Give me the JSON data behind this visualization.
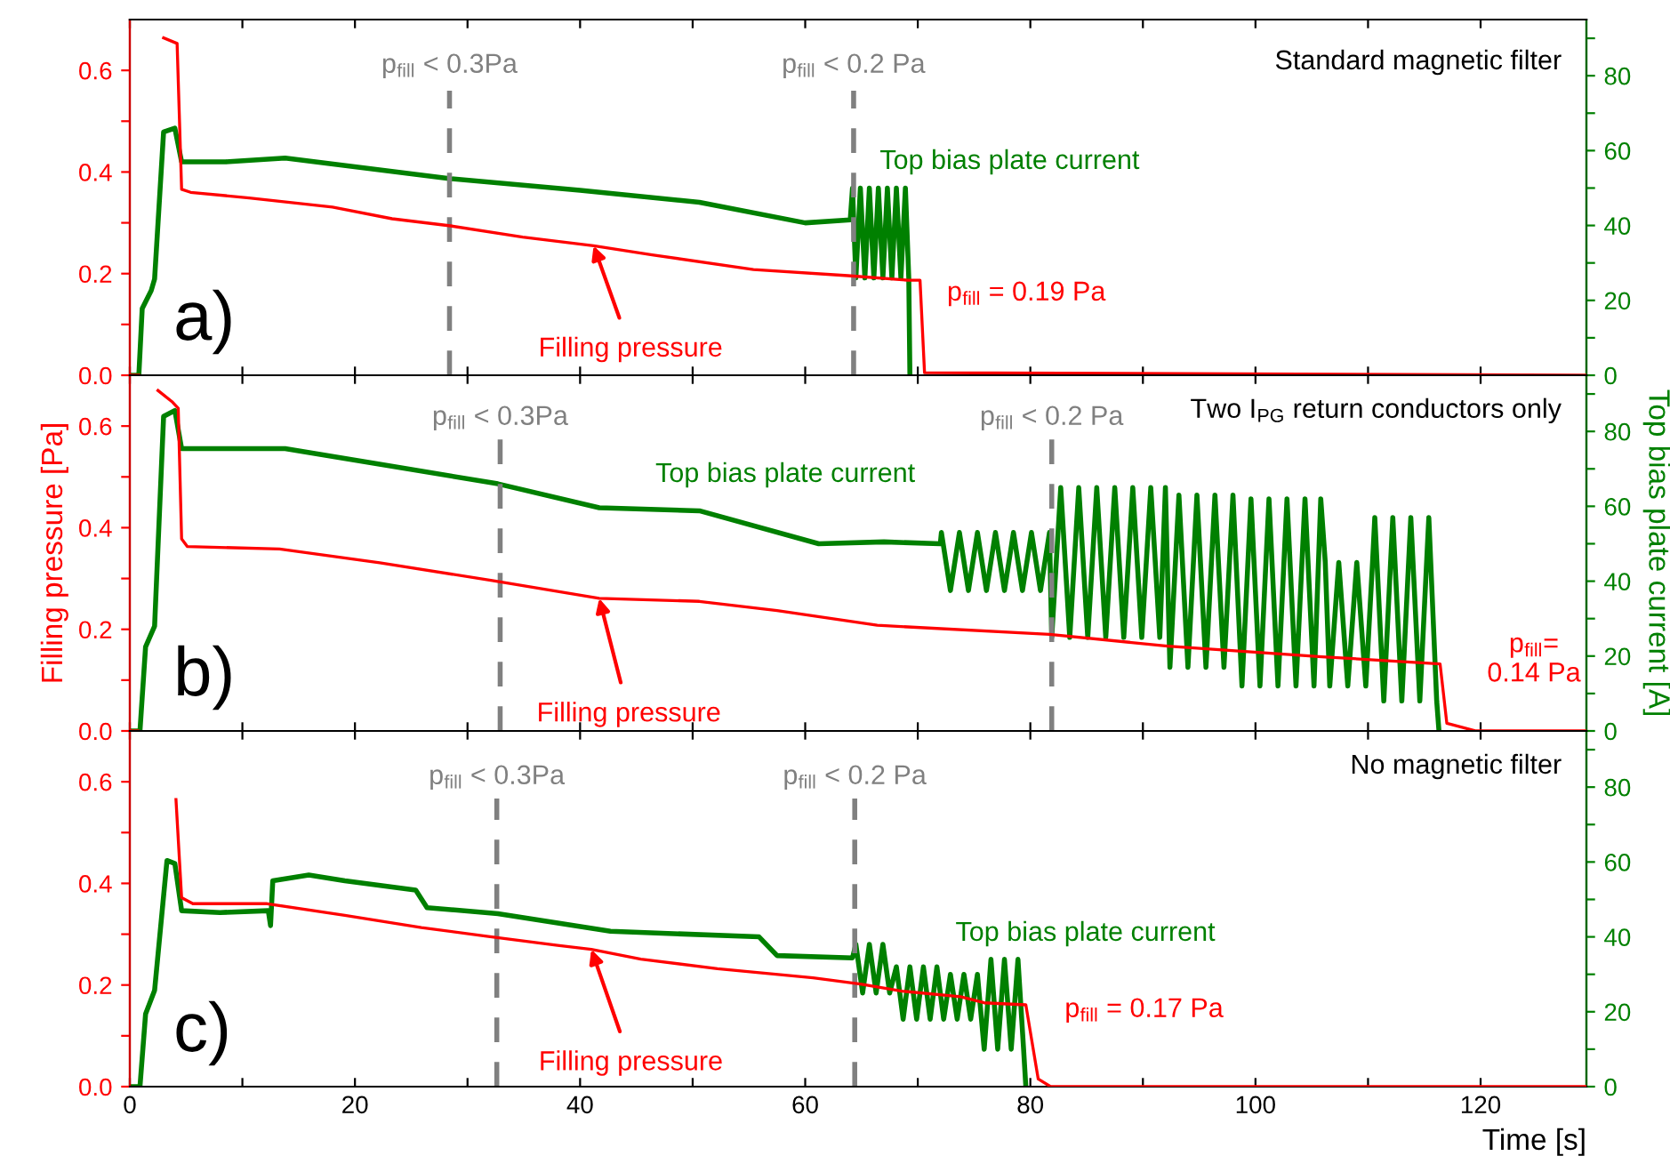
{
  "chart_data": [
    {
      "type": "line",
      "tick_labels": "y",
      "xlim": [
        0,
        129.4
      ],
      "xticks": [
        0,
        {
          "value": 10,
          "label": null
        },
        20,
        {
          "value": 30,
          "label": null
        },
        40,
        {
          "value": 50,
          "label": null
        },
        60,
        {
          "value": 70,
          "label": null
        },
        80,
        {
          "value": 90,
          "label": null
        },
        100,
        {
          "value": 110,
          "label": null
        },
        120
      ],
      "ylim": [
        0,
        0.7
      ],
      "yticks": [
        {
          "value": 0,
          "label": "0.0"
        },
        {
          "value": 0.1,
          "label": null
        },
        {
          "value": 0.2,
          "label": "0.2"
        },
        {
          "value": 0.3,
          "label": null
        },
        {
          "value": 0.4,
          "label": "0.4"
        },
        {
          "value": 0.5,
          "label": null
        },
        {
          "value": 0.6,
          "label": "0.6"
        }
      ],
      "y2lim": [
        0,
        95
      ],
      "y2ticks": [
        0,
        {
          "value": 10,
          "label": null
        },
        20,
        {
          "value": 30,
          "label": null
        },
        40,
        {
          "value": 50,
          "label": null
        },
        60,
        {
          "value": 70,
          "label": null
        },
        80,
        {
          "value": 90,
          "label": null
        }
      ],
      "series": [
        {
          "name": "Filling pressure",
          "color": "#ff0000",
          "x": [
            0,
            0.8,
            1.0,
            2.2,
            3.0,
            4.2,
            4.6,
            5.4,
            10.6,
            18,
            23.3,
            28.5,
            34.9,
            41.2,
            46.4,
            55.4,
            63.8,
            69.1,
            70.2,
            70.6,
            129.4
          ],
          "values": [
            0,
            0,
            null,
            null,
            0.664,
            0.653,
            0.366,
            0.36,
            0.349,
            0.331,
            0.308,
            0.294,
            0.272,
            0.255,
            0.237,
            0.208,
            0.196,
            0.187,
            0.187,
            0.005,
            0
          ]
        },
        {
          "name": "Top bias plate current",
          "color": "#008000",
          "axis": "y2",
          "x": [
            0,
            0.8,
            1.1,
            1.9,
            2.2,
            3.0,
            4.0,
            4.6,
            8.5,
            13.8,
            28.5,
            40,
            50.6,
            60,
            64,
            64.2,
            64.5,
            64.9,
            65.3,
            65.7,
            66.1,
            66.5,
            66.9,
            67.3,
            67.7,
            68.1,
            68.5,
            68.9,
            69.2,
            69.3
          ],
          "values": [
            0,
            0,
            17.8,
            22.6,
            25.7,
            65,
            66,
            57,
            57,
            58,
            52.5,
            49.4,
            46.2,
            40.7,
            41.5,
            50,
            26,
            50,
            26,
            50,
            26,
            50,
            26,
            50,
            26,
            50,
            26,
            50,
            26,
            0
          ]
        }
      ],
      "ref_lines": [
        {
          "axis": "x",
          "value": 28.4,
          "label": "p$_{fill}$ < 0.3Pa",
          "color": "#808080",
          "line_style": "dashed"
        },
        {
          "axis": "x",
          "value": 64.3,
          "label": "p$_{fill}$ < 0.2 Pa",
          "color": "#808080",
          "line_style": "dashed"
        }
      ],
      "annotations": [
        "a)",
        "Standard magnetic filter",
        {
          "text": "p$_{fill}$ = 0.19 Pa",
          "x": 70.4,
          "y": 0.19
        }
      ]
    },
    {
      "type": "line",
      "tick_labels": "y",
      "ylabel": "Filling pressure [Pa]",
      "y2label": "Top bias plate current [A]",
      "xlim": [
        0,
        129.4
      ],
      "xticks": [
        0,
        {
          "value": 10,
          "label": null
        },
        20,
        {
          "value": 30,
          "label": null
        },
        40,
        {
          "value": 50,
          "label": null
        },
        60,
        {
          "value": 70,
          "label": null
        },
        80,
        {
          "value": 90,
          "label": null
        },
        100,
        {
          "value": 110,
          "label": null
        },
        120
      ],
      "ylim": [
        0,
        0.7
      ],
      "yticks": [
        {
          "value": 0,
          "label": "0.0"
        },
        {
          "value": 0.1,
          "label": null
        },
        {
          "value": 0.2,
          "label": "0.2"
        },
        {
          "value": 0.3,
          "label": null
        },
        {
          "value": 0.4,
          "label": "0.4"
        },
        {
          "value": 0.5,
          "label": null
        },
        {
          "value": 0.6,
          "label": "0.6"
        }
      ],
      "y2lim": [
        0,
        95
      ],
      "y2ticks": [
        0,
        {
          "value": 10,
          "label": null
        },
        20,
        {
          "value": 30,
          "label": null
        },
        40,
        {
          "value": 50,
          "label": null
        },
        60,
        {
          "value": 70,
          "label": null
        },
        80,
        {
          "value": 90,
          "label": null
        }
      ],
      "series": [
        {
          "name": "Filling pressure",
          "color": "#ff0000",
          "x": [
            0,
            0.7,
            0.9,
            1.5,
            2.5,
            3.8,
            4.3,
            4.6,
            5.1,
            13.3,
            22.2,
            32.2,
            41.7,
            50.6,
            57.5,
            66.4,
            81.7,
            92.2,
            105.9,
            116.4,
            117,
            119.6,
            129.4
          ],
          "values": [
            0,
            0,
            null,
            null,
            0.67,
            0.647,
            0.635,
            0.378,
            0.363,
            0.358,
            0.331,
            0.296,
            0.261,
            0.255,
            0.237,
            0.208,
            0.19,
            0.167,
            0.146,
            0.132,
            0.015,
            0,
            0
          ]
        },
        {
          "name": "Top bias plate current",
          "color": "#008000",
          "axis": "y2",
          "x": [
            0,
            0.9,
            1.4,
            2.2,
            3.0,
            4.0,
            4.6,
            13.8,
            21.7,
            32.7,
            41.7,
            50.6,
            61.2,
            67,
            72,
            72.1,
            72.9,
            73.7,
            74.5,
            75.3,
            76.1,
            76.9,
            77.7,
            78.5,
            79.3,
            80.1,
            80.9,
            81.7,
            81.9,
            82.7,
            83.5,
            84.3,
            85.1,
            85.9,
            86.7,
            87.5,
            88.3,
            89.1,
            89.9,
            90.7,
            91.5,
            92.0,
            92.4,
            93.2,
            94.0,
            94.8,
            95.6,
            96.4,
            97.2,
            98.0,
            98.8,
            99.6,
            100.4,
            101.2,
            102.0,
            102.8,
            103.6,
            104.4,
            105.2,
            105.8,
            106.2,
            106.6,
            107.4,
            108.2,
            109.0,
            109.8,
            110.4,
            110.6,
            111.4,
            112.2,
            113.0,
            113.8,
            114.6,
            115.4,
            116.1,
            116.3
          ],
          "values": [
            0,
            0,
            22.5,
            28,
            84,
            85.6,
            75.4,
            75.4,
            71.5,
            66,
            59.6,
            58.8,
            50,
            50.5,
            50,
            53,
            37.5,
            53,
            37.5,
            53,
            37.5,
            53,
            37.5,
            53,
            37.5,
            53,
            37.5,
            53,
            25,
            65,
            25,
            65,
            25,
            65,
            25,
            65,
            25,
            65,
            25,
            65,
            25,
            65,
            17,
            63,
            17,
            63,
            17,
            63,
            17,
            63,
            12,
            62,
            12,
            62,
            12,
            62,
            12,
            62,
            12,
            62,
            45,
            12,
            45,
            12,
            45,
            12,
            45,
            57,
            8,
            57,
            8,
            57,
            8,
            57,
            8,
            0
          ]
        }
      ],
      "ref_lines": [
        {
          "axis": "x",
          "value": 32.9,
          "label": "p$_{fill}$ < 0.3Pa",
          "color": "#808080",
          "line_style": "dashed"
        },
        {
          "axis": "x",
          "value": 81.9,
          "label": "p$_{fill}$ < 0.2 Pa",
          "color": "#808080",
          "line_style": "dashed"
        }
      ],
      "annotations": [
        "b)",
        "Two I$_{PG}$ return conductors only",
        {
          "text": "p$_{fill}$=\n0.14 Pa",
          "x": 116.4,
          "y": 0.14
        }
      ]
    },
    {
      "type": "line",
      "xlabel": "Time [s]",
      "xlim": [
        0,
        129.4
      ],
      "xticks": [
        0,
        {
          "value": 10,
          "label": null
        },
        20,
        {
          "value": 30,
          "label": null
        },
        40,
        {
          "value": 50,
          "label": null
        },
        60,
        {
          "value": 70,
          "label": null
        },
        80,
        {
          "value": 90,
          "label": null
        },
        100,
        {
          "value": 110,
          "label": null
        },
        120
      ],
      "ylim": [
        0,
        0.7
      ],
      "yticks": [
        {
          "value": 0,
          "label": "0.0"
        },
        {
          "value": 0.1,
          "label": null
        },
        {
          "value": 0.2,
          "label": "0.2"
        },
        {
          "value": 0.3,
          "label": null
        },
        {
          "value": 0.4,
          "label": "0.4"
        },
        {
          "value": 0.5,
          "label": null
        },
        {
          "value": 0.6,
          "label": "0.6"
        }
      ],
      "y2lim": [
        0,
        95
      ],
      "y2ticks": [
        0,
        {
          "value": 10,
          "label": null
        },
        20,
        {
          "value": 30,
          "label": null
        },
        40,
        {
          "value": 50,
          "label": null
        },
        60,
        {
          "value": 70,
          "label": null
        },
        80,
        {
          "value": 90,
          "label": null
        }
      ],
      "series": [
        {
          "name": "Filling pressure",
          "color": "#ff0000",
          "x": [
            4.1,
            4.6,
            5.6,
            12.2,
            19.1,
            25.9,
            31.7,
            38,
            41,
            45.4,
            52.2,
            60.7,
            64.9,
            68.6,
            73.8,
            75.9,
            79.6,
            80.7,
            81.8,
            129.4
          ],
          "values": [
            0.565,
            0.372,
            0.36,
            0.36,
            0.337,
            0.313,
            0.296,
            0.278,
            0.27,
            0.251,
            0.232,
            0.214,
            0.202,
            0.188,
            0.177,
            0.165,
            0.161,
            0.015,
            0,
            0
          ]
        },
        {
          "name": "Top bias plate current",
          "color": "#008000",
          "axis": "y2",
          "x": [
            0,
            0.9,
            1.4,
            2.2,
            3.3,
            4.0,
            4.6,
            8,
            12.3,
            12.5,
            12.7,
            15.9,
            19.1,
            25.4,
            26.4,
            32.7,
            42.7,
            55.9,
            57.5,
            64.2,
            64.5,
            65.1,
            65.7,
            66.3,
            66.9,
            67.5,
            68.1,
            68.7,
            69.3,
            69.9,
            70.5,
            71.1,
            71.7,
            72.3,
            72.9,
            73.5,
            74.1,
            74.7,
            75.3,
            75.9,
            76.5,
            77.1,
            77.7,
            78.3,
            78.9,
            79.4,
            79.6
          ],
          "values": [
            0,
            0,
            19.4,
            25.7,
            60.4,
            59.6,
            47,
            46.5,
            47,
            43,
            55,
            56.5,
            55,
            52.5,
            47.8,
            46.2,
            41.5,
            40,
            35,
            34.4,
            38,
            25,
            38,
            25,
            38,
            25,
            32,
            18,
            32,
            18,
            32,
            18,
            32,
            18,
            30,
            18,
            30,
            18,
            30,
            10,
            34,
            10,
            34,
            10,
            34,
            10,
            0
          ]
        }
      ],
      "ref_lines": [
        {
          "axis": "x",
          "value": 32.6,
          "label": "p$_{fill}$ < 0.3Pa",
          "color": "#808080",
          "line_style": "dashed"
        },
        {
          "axis": "x",
          "value": 64.4,
          "label": "p$_{fill}$ < 0.2 Pa",
          "color": "#808080",
          "line_style": "dashed"
        }
      ],
      "annotations": [
        "c)",
        "No magnetic filter",
        {
          "text": "p$_{fill}$ = 0.17 Pa",
          "x": 80.2,
          "y": 0.17
        }
      ]
    }
  ]
}
